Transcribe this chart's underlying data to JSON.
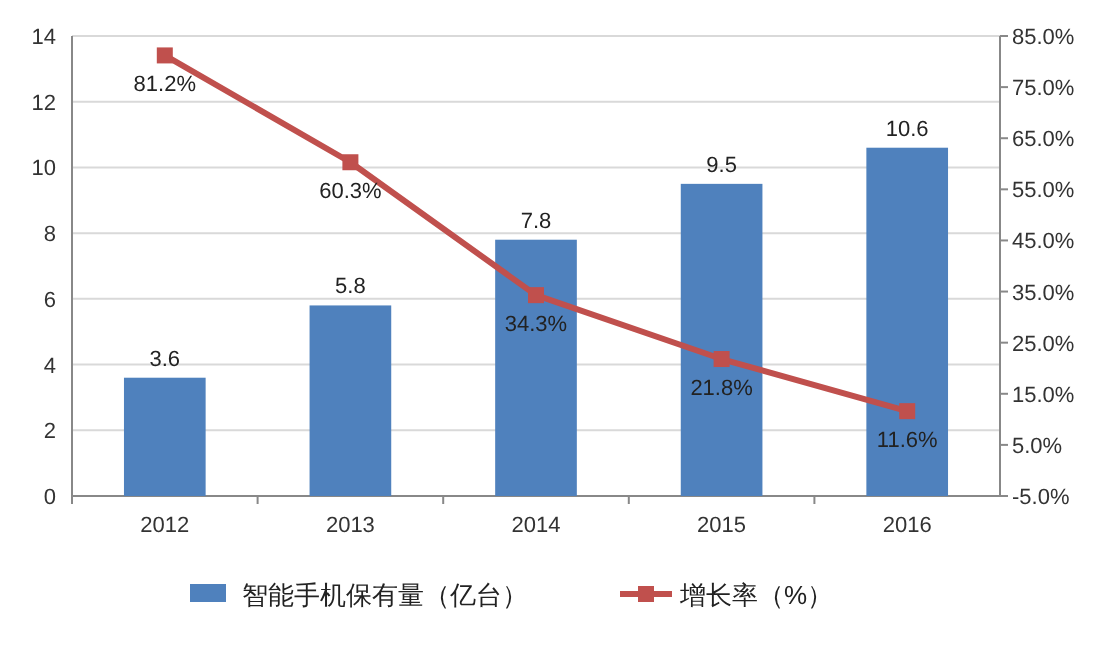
{
  "chart_data": {
    "type": "bar",
    "categories": [
      "2012",
      "2013",
      "2014",
      "2015",
      "2016"
    ],
    "series": [
      {
        "name": "智能手机保有量（亿台）",
        "color": "#4f81bd",
        "values": [
          3.6,
          5.8,
          7.8,
          9.5,
          10.6
        ],
        "value_labels": [
          "3.6",
          "5.8",
          "7.8",
          "9.5",
          "10.6"
        ]
      },
      {
        "name": "增长率（%）",
        "type": "line",
        "axis": "y2",
        "color": "#c0504d",
        "values": [
          81.2,
          60.3,
          34.3,
          21.8,
          11.6
        ],
        "value_labels": [
          "81.2%",
          "60.3%",
          "34.3%",
          "21.8%",
          "11.6%"
        ]
      }
    ],
    "ylim": [
      0,
      14
    ],
    "yticks": [
      0,
      2,
      4,
      6,
      8,
      10,
      12,
      14
    ],
    "y2lim": [
      -5,
      85
    ],
    "y2ticks": [
      {
        "value": -5,
        "label": "-5.0%"
      },
      {
        "value": 5,
        "label": "5.0%"
      },
      {
        "value": 15,
        "label": "15.0%"
      },
      {
        "value": 25,
        "label": "25.0%"
      },
      {
        "value": 35,
        "label": "35.0%"
      },
      {
        "value": 45,
        "label": "45.0%"
      },
      {
        "value": 55,
        "label": "55.0%"
      },
      {
        "value": 65,
        "label": "65.0%"
      },
      {
        "value": 75,
        "label": "75.0%"
      },
      {
        "value": 85,
        "label": "85.0%"
      }
    ],
    "grid": "y",
    "legend": "bottom",
    "marker": "square",
    "line_style": "solid"
  }
}
